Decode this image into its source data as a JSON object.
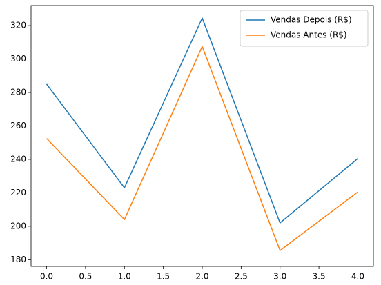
{
  "chart_data": {
    "type": "line",
    "x": [
      0,
      1,
      2,
      3,
      4
    ],
    "series": [
      {
        "name": "Vendas Depois (R$)",
        "color": "#1f77b4",
        "values": [
          285,
          223,
          324.5,
          202,
          240.5
        ]
      },
      {
        "name": "Vendas Antes (R$)",
        "color": "#ff7f0e",
        "values": [
          252.5,
          204,
          307.5,
          185.5,
          220.5
        ]
      }
    ],
    "xlim": [
      -0.2,
      4.2
    ],
    "xticks": [
      {
        "value": 0,
        "label": "0.0"
      },
      {
        "value": 0.5,
        "label": "0.5"
      },
      {
        "value": 1,
        "label": "1.0"
      },
      {
        "value": 1.5,
        "label": "1.5"
      },
      {
        "value": 2,
        "label": "2.0"
      },
      {
        "value": 2.5,
        "label": "2.5"
      },
      {
        "value": 3,
        "label": "3.0"
      },
      {
        "value": 3.5,
        "label": "3.5"
      },
      {
        "value": 4,
        "label": "4.0"
      }
    ],
    "ylim": [
      176,
      332
    ],
    "yticks": [
      180,
      200,
      220,
      240,
      260,
      280,
      300,
      320
    ],
    "legend": "upper right"
  }
}
